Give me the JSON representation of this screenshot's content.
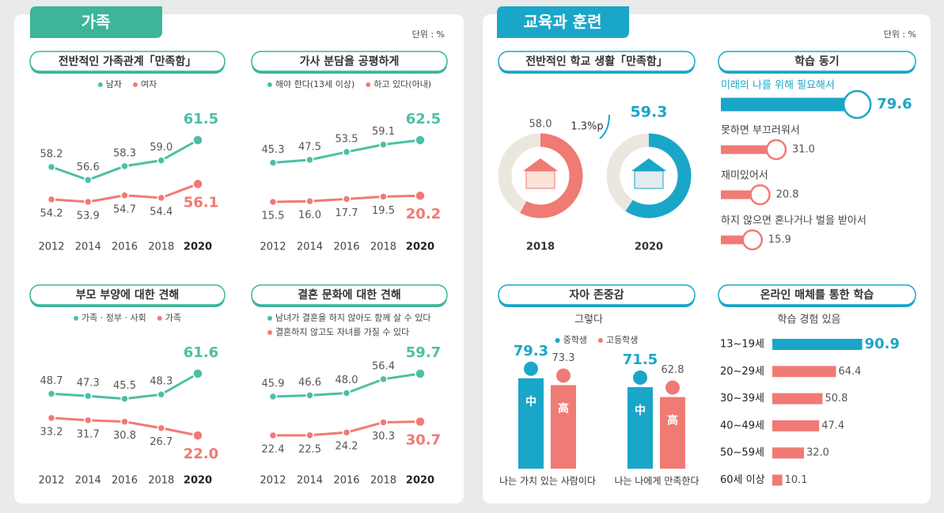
{
  "sections": [
    {
      "title": "가족",
      "unit": "단위 : %"
    },
    {
      "title": "교육과 훈련",
      "unit": "단위 : %"
    }
  ],
  "chart_data": [
    {
      "type": "line",
      "title": "전반적인 가족관계「만족함」",
      "categories": [
        "2012",
        "2014",
        "2016",
        "2018",
        "2020"
      ],
      "series": [
        {
          "name": "남자",
          "color": "#4dbfa5",
          "values": [
            58.2,
            56.6,
            58.3,
            59.0,
            61.5
          ],
          "value_labels": [
            "58.2",
            "56.6",
            "58.3",
            "59.0",
            "61.5"
          ]
        },
        {
          "name": "여자",
          "color": "#f07a74",
          "values": [
            54.2,
            53.9,
            54.7,
            54.4,
            56.1
          ],
          "value_labels": [
            "54.2",
            "53.9",
            "54.7",
            "54.4",
            "56.1"
          ]
        }
      ]
    },
    {
      "type": "line",
      "title": "가사 분담을 공평하게",
      "categories": [
        "2012",
        "2014",
        "2016",
        "2018",
        "2020"
      ],
      "series": [
        {
          "name": "해야 한다(13세 이상)",
          "color": "#4dbfa5",
          "values": [
            45.3,
            47.5,
            53.5,
            59.1,
            62.5
          ],
          "value_labels": [
            "45.3",
            "47.5",
            "53.5",
            "59.1",
            "62.5"
          ]
        },
        {
          "name": "하고 있다(아내)",
          "color": "#f07a74",
          "values": [
            15.5,
            16.0,
            17.7,
            19.5,
            20.2
          ],
          "value_labels": [
            "15.5",
            "16.0",
            "17.7",
            "19.5",
            "20.2"
          ]
        }
      ]
    },
    {
      "type": "line",
      "title": "부모 부양에 대한 견해",
      "categories": [
        "2012",
        "2014",
        "2016",
        "2018",
        "2020"
      ],
      "series": [
        {
          "name": "가족 · 정부 · 사회",
          "color": "#4dbfa5",
          "values": [
            48.7,
            47.3,
            45.5,
            48.3,
            61.6
          ],
          "value_labels": [
            "48.7",
            "47.3",
            "45.5",
            "48.3",
            "61.6"
          ]
        },
        {
          "name": "가족",
          "color": "#f07a74",
          "values": [
            33.2,
            31.7,
            30.8,
            26.7,
            22.0
          ],
          "value_labels": [
            "33.2",
            "31.7",
            "30.8",
            "26.7",
            "22.0"
          ]
        }
      ]
    },
    {
      "type": "line",
      "title": "결혼 문화에 대한 견해",
      "categories": [
        "2012",
        "2014",
        "2016",
        "2018",
        "2020"
      ],
      "series": [
        {
          "name": "남녀가 결혼을 하지 않아도 함께 살 수 있다",
          "color": "#4dbfa5",
          "values": [
            45.9,
            46.6,
            48.0,
            56.4,
            59.7
          ],
          "value_labels": [
            "45.9",
            "46.6",
            "48.0",
            "56.4",
            "59.7"
          ]
        },
        {
          "name": "결혼하지 않고도 자녀를 가질 수 있다",
          "color": "#f07a74",
          "values": [
            22.4,
            22.5,
            24.2,
            30.3,
            30.7
          ],
          "value_labels": [
            "22.4",
            "22.5",
            "24.2",
            "30.3",
            "30.7"
          ]
        }
      ]
    },
    {
      "type": "donut",
      "title": "전반적인 학교 생활「만족함」",
      "categories": [
        "2018",
        "2020"
      ],
      "values": [
        58.0,
        59.3
      ],
      "value_labels": [
        "58.0",
        "59.3"
      ],
      "colors": [
        "#f07a74",
        "#1aa6c8"
      ],
      "annotation": "1.3%p"
    },
    {
      "type": "bar",
      "title": "학습 동기",
      "categories": [
        "미래의 나를 위해 필요해서",
        "못하면 부끄러워서",
        "재미있어서",
        "하지 않으면 혼나거나 벌을 받아서"
      ],
      "values": [
        79.6,
        31.0,
        20.8,
        15.9
      ],
      "value_labels": [
        "79.6",
        "31.0",
        "20.8",
        "15.9"
      ],
      "colors": [
        "#1aa6c8",
        "#f07a74",
        "#f07a74",
        "#f07a74"
      ]
    },
    {
      "type": "bar",
      "title": "자아 존중감",
      "subtitle": "그렇다",
      "categories": [
        "나는 가치 있는 사람이다",
        "나는 나에게 만족한다"
      ],
      "series": [
        {
          "name": "중학생",
          "color": "#1aa6c8",
          "symbol": "中",
          "values": [
            79.3,
            71.5
          ],
          "value_labels": [
            "79.3",
            "71.5"
          ]
        },
        {
          "name": "고등학생",
          "color": "#f07a74",
          "symbol": "高",
          "values": [
            73.3,
            62.8
          ],
          "value_labels": [
            "73.3",
            "62.8"
          ]
        }
      ]
    },
    {
      "type": "bar",
      "title": "온라인 매체를 통한 학습",
      "subtitle": "학습 경험 있음",
      "categories": [
        "13~19세",
        "20~29세",
        "30~39세",
        "40~49세",
        "50~59세",
        "60세 이상"
      ],
      "values": [
        90.9,
        64.4,
        50.8,
        47.4,
        32.0,
        10.1
      ],
      "value_labels": [
        "90.9",
        "64.4",
        "50.8",
        "47.4",
        "32.0",
        "10.1"
      ],
      "colors": [
        "#1aa6c8",
        "#f07a74",
        "#f07a74",
        "#f07a74",
        "#f07a74",
        "#f07a74"
      ]
    }
  ]
}
